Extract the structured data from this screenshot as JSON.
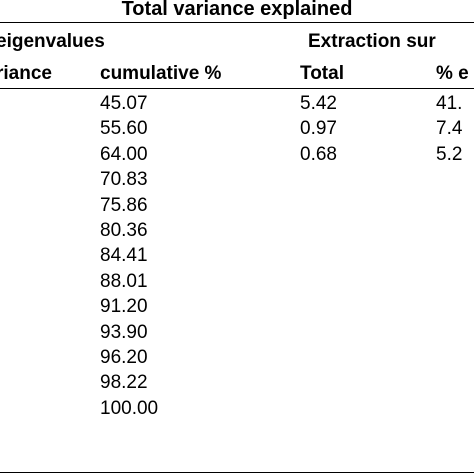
{
  "table": {
    "title": "Total variance explained",
    "group_headers": {
      "initial": "eigenvalues",
      "extraction": "Extraction sur"
    },
    "column_headers": {
      "variance": "riance",
      "cumulative": "cumulative %",
      "total": "Total",
      "percent": "% e"
    },
    "cumulative_values": [
      "45.07",
      "55.60",
      "64.00",
      "70.83",
      "75.86",
      "80.36",
      "84.41",
      "88.01",
      "91.20",
      "93.90",
      "96.20",
      "98.22",
      "100.00"
    ],
    "extraction_totals": [
      "5.42",
      "0.97",
      "0.68"
    ],
    "extraction_percents": [
      "41.",
      "7.4",
      "5.2"
    ]
  }
}
